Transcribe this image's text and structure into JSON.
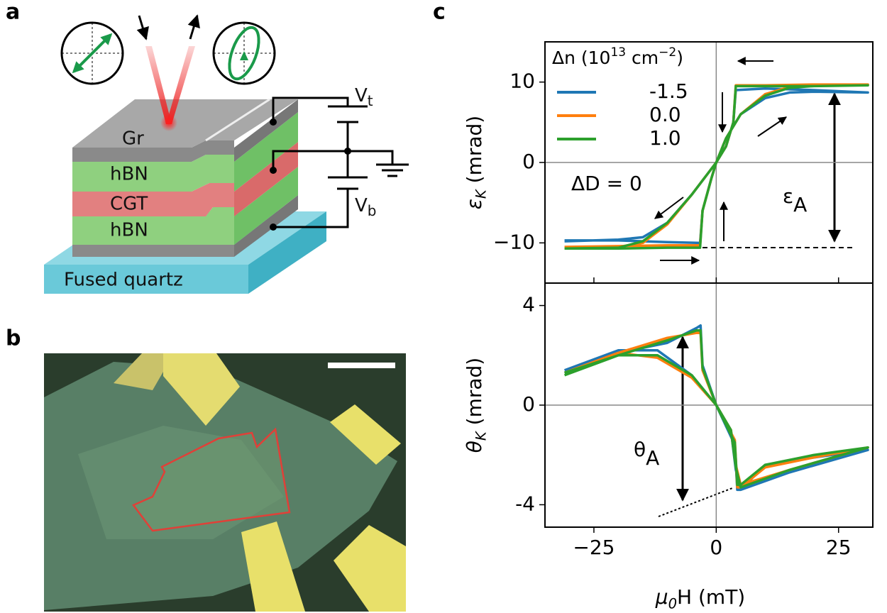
{
  "panel_labels": [
    "a",
    "b",
    "c"
  ],
  "diagram": {
    "layers": [
      "Gr",
      "hBN",
      "CGT",
      "hBN"
    ],
    "substrate": "Fused quartz",
    "voltages": [
      {
        "symbol": "V",
        "sub": "t"
      },
      {
        "symbol": "V",
        "sub": "b"
      }
    ]
  },
  "chart_data": [
    {
      "type": "line",
      "ylabel": {
        "symbol": "ε",
        "sub": "K",
        "unit": " (mrad)"
      },
      "xlim": [
        -35,
        32
      ],
      "ylim": [
        -15,
        15
      ],
      "xticks": [
        {
          "value": -25,
          "label": "−25"
        },
        0,
        25
      ],
      "xtick_labels": false,
      "yticks": [
        10,
        0,
        {
          "value": -10,
          "label": "−10"
        }
      ],
      "zero_lines": true,
      "legend": "upper left",
      "legend_title": [
        "Δn (10",
        "13",
        " cm",
        "−2",
        ")"
      ],
      "annotations": [
        "ΔD = 0",
        {
          "symbol": "ε",
          "sub": "A"
        }
      ],
      "series": [
        {
          "name": "-1.5",
          "color": "#1f77b4",
          "x": [
            -31,
            -20,
            -10,
            -3.3,
            -2.8,
            -1,
            0,
            2,
            5,
            10,
            15,
            20,
            31,
            20,
            10,
            4,
            3.5,
            2,
            0,
            -5,
            -10,
            -15,
            -20,
            -31
          ],
          "values": [
            -9.7,
            -9.7,
            -9.9,
            -10,
            -6,
            -2,
            0,
            3,
            6,
            8,
            8.7,
            8.8,
            8.7,
            9,
            9.2,
            9,
            5,
            2,
            0,
            -4,
            -7.5,
            -9.3,
            -9.6,
            -9.8
          ]
        },
        {
          "name": "0.0",
          "color": "#ff7f0e",
          "x": [
            -31,
            -20,
            -10,
            -3.3,
            -2.8,
            -1,
            0,
            2,
            5,
            10,
            15,
            20,
            31,
            20,
            10,
            4,
            3.5,
            2,
            0,
            -5,
            -10,
            -15,
            -20,
            -31
          ],
          "values": [
            -10.5,
            -10.4,
            -10.3,
            -10.3,
            -6,
            -2,
            0,
            3,
            6,
            8.5,
            9.4,
            9.7,
            9.7,
            9.7,
            9.6,
            9.6,
            5,
            2,
            0,
            -4,
            -7.7,
            -10,
            -10.5,
            -10.6
          ]
        },
        {
          "name": "1.0",
          "color": "#2ca02c",
          "x": [
            -31,
            -20,
            -10,
            -3.3,
            -2.8,
            -1,
            0,
            2,
            5,
            10,
            15,
            20,
            31,
            20,
            10,
            4,
            3.5,
            2,
            0,
            -5,
            -10,
            -15,
            -20,
            -31
          ],
          "values": [
            -10.7,
            -10.7,
            -10.6,
            -10.6,
            -6,
            -2,
            0,
            3,
            6,
            8.3,
            9.3,
            9.5,
            9.6,
            9.5,
            9.5,
            9.5,
            5,
            2,
            0,
            -4,
            -7.5,
            -9.8,
            -10.6,
            -10.7
          ]
        }
      ]
    },
    {
      "type": "line",
      "ylabel": {
        "symbol": "θ",
        "sub": "K",
        "unit": " (mrad)"
      },
      "xlabel": {
        "symbol": "μ",
        "sub": "0",
        "unit": "H (mT)"
      },
      "xlim": [
        -35,
        32
      ],
      "ylim": [
        -4.9,
        4.9
      ],
      "xticks": [
        {
          "value": -25,
          "label": "−25"
        },
        0,
        25
      ],
      "xtick_labels": true,
      "yticks": [
        4,
        0,
        -4
      ],
      "zero_lines": true,
      "annotations": [
        {
          "symbol": "θ",
          "sub": "A"
        }
      ],
      "series": [
        {
          "color": "#1f77b4",
          "x": [
            -31,
            -20,
            -10,
            -4,
            -3.2,
            -2.8,
            0,
            3,
            4,
            5,
            15,
            31,
            20,
            10,
            5,
            4.3,
            3.8,
            0,
            -5,
            -12,
            -20,
            -31
          ],
          "values": [
            1.3,
            2.1,
            2.5,
            3.1,
            3.2,
            1.6,
            0,
            -1,
            -2.6,
            -3.4,
            -2.7,
            -1.8,
            -2.1,
            -2.4,
            -3.4,
            -3.4,
            -1.6,
            0,
            1.2,
            2.2,
            2.2,
            1.4
          ]
        },
        {
          "color": "#ff7f0e",
          "x": [
            -31,
            -20,
            -10,
            -4,
            -3.2,
            -2.8,
            0,
            3,
            4,
            5,
            15,
            31,
            20,
            10,
            5,
            4.3,
            3.8,
            0,
            -5,
            -12,
            -20,
            -31
          ],
          "values": [
            1.3,
            2.1,
            2.7,
            2.9,
            2.9,
            1.4,
            0,
            -1,
            -2.4,
            -3.2,
            -2.6,
            -1.7,
            -2.1,
            -2.5,
            -3.3,
            -3.3,
            -1.4,
            0,
            1.1,
            1.9,
            2.1,
            1.3
          ]
        },
        {
          "color": "#2ca02c",
          "x": [
            -31,
            -20,
            -10,
            -4,
            -3.2,
            -2.8,
            0,
            3,
            4,
            5,
            15,
            31,
            20,
            10,
            5,
            4.3,
            3.8,
            0,
            -5,
            -12,
            -20,
            -31
          ],
          "values": [
            1.2,
            2.0,
            2.6,
            3.0,
            3.0,
            1.5,
            0,
            -1,
            -2.5,
            -3.3,
            -2.6,
            -1.7,
            -2.0,
            -2.4,
            -3.2,
            -3.2,
            -1.5,
            0,
            1.2,
            2.0,
            2.0,
            1.3
          ]
        }
      ]
    }
  ]
}
